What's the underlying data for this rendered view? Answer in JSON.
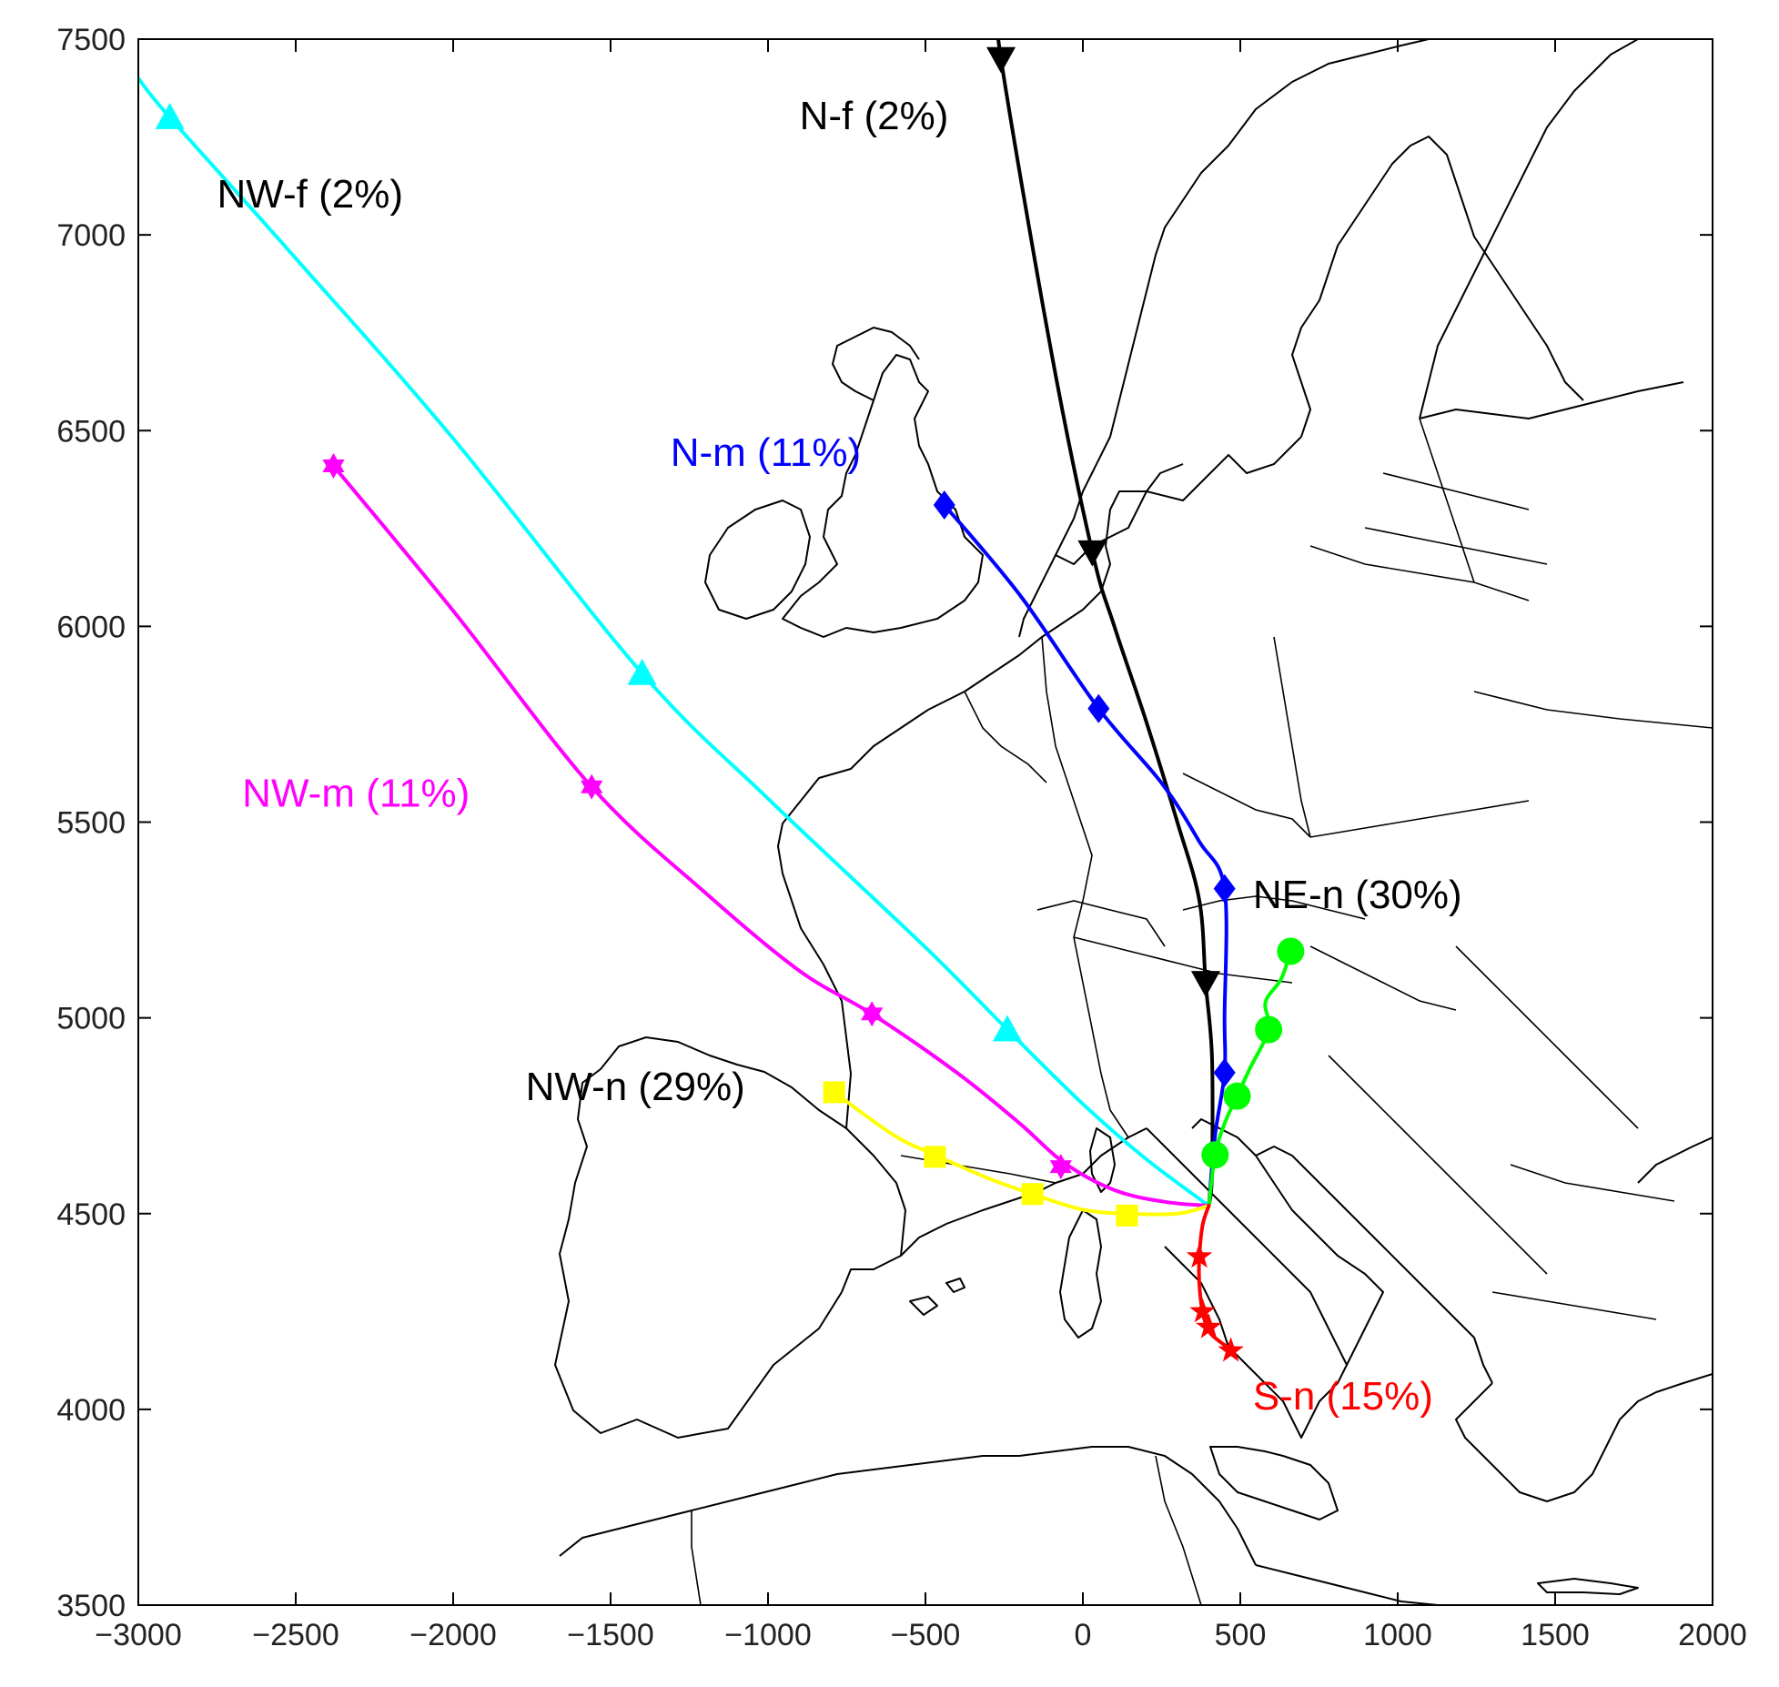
{
  "chart_data": {
    "type": "line",
    "xlim": [
      -3000,
      2000
    ],
    "ylim": [
      3500,
      7500
    ],
    "x_ticks": [
      -3000,
      -2500,
      -2000,
      -1500,
      -1000,
      -500,
      0,
      500,
      1000,
      1500,
      2000
    ],
    "y_ticks": [
      3500,
      4000,
      4500,
      5000,
      5500,
      6000,
      6500,
      7000,
      7500
    ],
    "x_tick_labels": [
      "−3000",
      "−2500",
      "−2000",
      "−1500",
      "−1000",
      "−500",
      "0",
      "500",
      "1000",
      "1500",
      "2000"
    ],
    "y_tick_labels": [
      "3500",
      "4000",
      "4500",
      "5000",
      "5500",
      "6000",
      "6500",
      "7000",
      "7500"
    ],
    "grid": false,
    "background": "map of Europe",
    "series": [
      {
        "name": "NW-f (2%)",
        "color": "#00FFFF",
        "marker": "triangle-up",
        "points": [
          [
            -3000,
            7400
          ],
          [
            -2900,
            7300
          ],
          [
            -2500,
            6940
          ],
          [
            -2000,
            6480
          ],
          [
            -1400,
            5880
          ],
          [
            -1000,
            5560
          ],
          [
            -500,
            5180
          ],
          [
            -240,
            4970
          ],
          [
            0,
            4780
          ],
          [
            200,
            4640
          ],
          [
            400,
            4520
          ]
        ],
        "markers": [
          [
            -2900,
            7300
          ],
          [
            -1400,
            5880
          ],
          [
            -240,
            4970
          ]
        ],
        "label_at": [
          -2750,
          7070
        ]
      },
      {
        "name": "NW-m (11%)",
        "color": "#FF00FF",
        "marker": "hexagram",
        "points": [
          [
            -2380,
            6410
          ],
          [
            -2000,
            6040
          ],
          [
            -1560,
            5590
          ],
          [
            -1200,
            5320
          ],
          [
            -900,
            5120
          ],
          [
            -670,
            5010
          ],
          [
            -400,
            4860
          ],
          [
            -200,
            4730
          ],
          [
            -60,
            4630
          ],
          [
            100,
            4560
          ],
          [
            260,
            4530
          ],
          [
            400,
            4520
          ]
        ],
        "markers": [
          [
            -2380,
            6410
          ],
          [
            -1560,
            5590
          ],
          [
            -670,
            5010
          ],
          [
            -70,
            4620
          ]
        ],
        "label_at": [
          -2670,
          5540
        ]
      },
      {
        "name": "NW-n (29%)",
        "color": "#FFFF00",
        "marker": "square",
        "points": [
          [
            -790,
            4810
          ],
          [
            -600,
            4700
          ],
          [
            -470,
            4650
          ],
          [
            -300,
            4590
          ],
          [
            -160,
            4550
          ],
          [
            0,
            4510
          ],
          [
            140,
            4500
          ],
          [
            300,
            4500
          ],
          [
            400,
            4520
          ]
        ],
        "markers": [
          [
            -790,
            4810
          ],
          [
            -470,
            4645
          ],
          [
            -160,
            4550
          ],
          [
            140,
            4495
          ]
        ],
        "label_at": [
          -1770,
          4790
        ]
      },
      {
        "name": "N-f (2%)",
        "color": "#000000",
        "marker": "triangle-down",
        "points": [
          [
            -270,
            7600
          ],
          [
            -260,
            7450
          ],
          [
            -100,
            6700
          ],
          [
            30,
            6190
          ],
          [
            100,
            6000
          ],
          [
            200,
            5760
          ],
          [
            300,
            5500
          ],
          [
            370,
            5300
          ],
          [
            390,
            5090
          ],
          [
            410,
            4900
          ],
          [
            410,
            4600
          ],
          [
            400,
            4520
          ]
        ],
        "markers": [
          [
            -260,
            7450
          ],
          [
            30,
            6190
          ],
          [
            390,
            5090
          ]
        ],
        "label_at": [
          -900,
          7270
        ]
      },
      {
        "name": "N-m (11%)",
        "color": "#0000FF",
        "marker": "diamond",
        "points": [
          [
            -440,
            6310
          ],
          [
            -200,
            6080
          ],
          [
            50,
            5790
          ],
          [
            250,
            5600
          ],
          [
            370,
            5450
          ],
          [
            450,
            5330
          ],
          [
            450,
            5000
          ],
          [
            450,
            4860
          ],
          [
            420,
            4700
          ],
          [
            400,
            4520
          ]
        ],
        "markers": [
          [
            -440,
            6310
          ],
          [
            50,
            5790
          ],
          [
            450,
            5330
          ],
          [
            450,
            4860
          ]
        ],
        "label_at": [
          -1310,
          6410
        ]
      },
      {
        "name": "NE-n (30%)",
        "color": "#00FF00",
        "marker": "circle",
        "points": [
          [
            660,
            5170
          ],
          [
            630,
            5100
          ],
          [
            580,
            5040
          ],
          [
            590,
            4970
          ],
          [
            530,
            4870
          ],
          [
            490,
            4800
          ],
          [
            450,
            4730
          ],
          [
            420,
            4650
          ],
          [
            400,
            4520
          ]
        ],
        "markers": [
          [
            660,
            5170
          ],
          [
            590,
            4970
          ],
          [
            490,
            4800
          ],
          [
            420,
            4650
          ]
        ],
        "label_at": [
          540,
          5280
        ]
      },
      {
        "name": "S-n (15%)",
        "color": "#FF0000",
        "marker": "pentagram",
        "points": [
          [
            400,
            4520
          ],
          [
            380,
            4470
          ],
          [
            370,
            4390
          ],
          [
            370,
            4320
          ],
          [
            380,
            4250
          ],
          [
            400,
            4200
          ],
          [
            440,
            4170
          ],
          [
            480,
            4150
          ]
        ],
        "markers": [
          [
            370,
            4390
          ],
          [
            380,
            4250
          ],
          [
            400,
            4210
          ],
          [
            470,
            4150
          ]
        ],
        "label_at": [
          540,
          4000
        ]
      }
    ]
  }
}
